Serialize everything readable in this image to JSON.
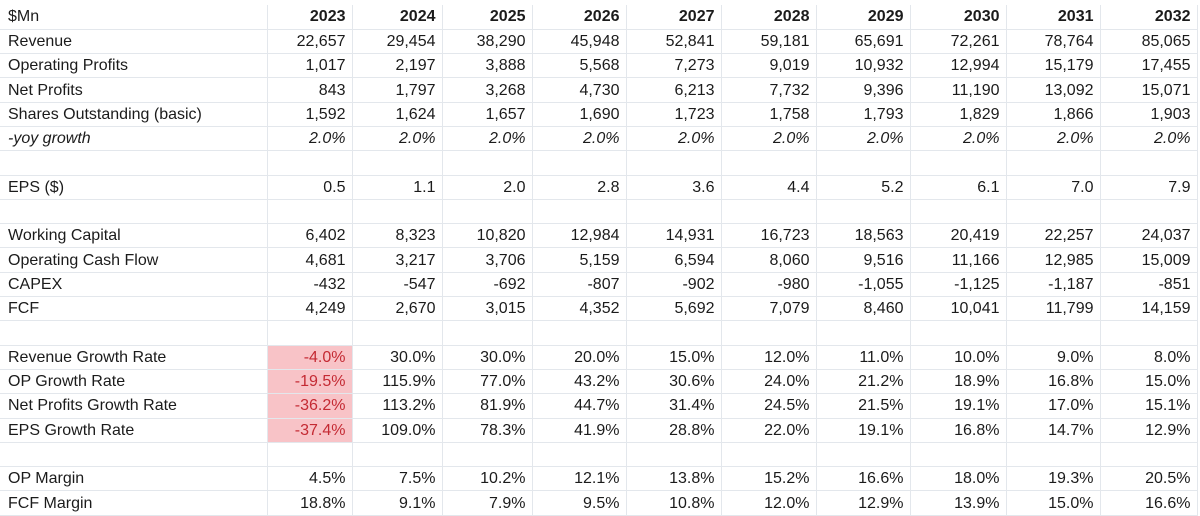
{
  "sheet": {
    "header": {
      "label": "$Mn",
      "years": [
        "2023",
        "2024",
        "2025",
        "2026",
        "2027",
        "2028",
        "2029",
        "2030",
        "2031",
        "2032"
      ]
    },
    "rows": [
      {
        "label": "Revenue",
        "values": [
          "22,657",
          "29,454",
          "38,290",
          "45,948",
          "52,841",
          "59,181",
          "65,691",
          "72,261",
          "78,764",
          "85,065"
        ]
      },
      {
        "label": "Operating Profits",
        "values": [
          "1,017",
          "2,197",
          "3,888",
          "5,568",
          "7,273",
          "9,019",
          "10,932",
          "12,994",
          "15,179",
          "17,455"
        ]
      },
      {
        "label": "Net Profits",
        "values": [
          "843",
          "1,797",
          "3,268",
          "4,730",
          "6,213",
          "7,732",
          "9,396",
          "11,190",
          "13,092",
          "15,071"
        ]
      },
      {
        "label": "Shares Outstanding (basic)",
        "values": [
          "1,592",
          "1,624",
          "1,657",
          "1,690",
          "1,723",
          "1,758",
          "1,793",
          "1,829",
          "1,866",
          "1,903"
        ]
      },
      {
        "label": "-yoy growth",
        "italic": true,
        "values": [
          "2.0%",
          "2.0%",
          "2.0%",
          "2.0%",
          "2.0%",
          "2.0%",
          "2.0%",
          "2.0%",
          "2.0%",
          "2.0%"
        ]
      },
      {
        "blank": true
      },
      {
        "label": "EPS ($)",
        "values": [
          "0.5",
          "1.1",
          "2.0",
          "2.8",
          "3.6",
          "4.4",
          "5.2",
          "6.1",
          "7.0",
          "7.9"
        ]
      },
      {
        "blank": true
      },
      {
        "label": "Working Capital",
        "values": [
          "6,402",
          "8,323",
          "10,820",
          "12,984",
          "14,931",
          "16,723",
          "18,563",
          "20,419",
          "22,257",
          "24,037"
        ]
      },
      {
        "label": "Operating Cash Flow",
        "values": [
          "4,681",
          "3,217",
          "3,706",
          "5,159",
          "6,594",
          "8,060",
          "9,516",
          "11,166",
          "12,985",
          "15,009"
        ]
      },
      {
        "label": "CAPEX",
        "values": [
          "-432",
          "-547",
          "-692",
          "-807",
          "-902",
          "-980",
          "-1,055",
          "-1,125",
          "-1,187",
          "-851"
        ]
      },
      {
        "label": "FCF",
        "values": [
          "4,249",
          "2,670",
          "3,015",
          "4,352",
          "5,692",
          "7,079",
          "8,460",
          "10,041",
          "11,799",
          "14,159"
        ]
      },
      {
        "blank": true
      },
      {
        "label": "Revenue Growth Rate",
        "highlight_first": true,
        "values": [
          "-4.0%",
          "30.0%",
          "30.0%",
          "20.0%",
          "15.0%",
          "12.0%",
          "11.0%",
          "10.0%",
          "9.0%",
          "8.0%"
        ]
      },
      {
        "label": "OP Growth Rate",
        "highlight_first": true,
        "values": [
          "-19.5%",
          "115.9%",
          "77.0%",
          "43.2%",
          "30.6%",
          "24.0%",
          "21.2%",
          "18.9%",
          "16.8%",
          "15.0%"
        ]
      },
      {
        "label": "Net Profits Growth Rate",
        "highlight_first": true,
        "values": [
          "-36.2%",
          "113.2%",
          "81.9%",
          "44.7%",
          "31.4%",
          "24.5%",
          "21.5%",
          "19.1%",
          "17.0%",
          "15.1%"
        ]
      },
      {
        "label": "EPS Growth Rate",
        "highlight_first": true,
        "values": [
          "-37.4%",
          "109.0%",
          "78.3%",
          "41.9%",
          "28.8%",
          "22.0%",
          "19.1%",
          "16.8%",
          "14.7%",
          "12.9%"
        ]
      },
      {
        "blank": true
      },
      {
        "label": "OP Margin",
        "values": [
          "4.5%",
          "7.5%",
          "10.2%",
          "12.1%",
          "13.8%",
          "15.2%",
          "16.6%",
          "18.0%",
          "19.3%",
          "20.5%"
        ]
      },
      {
        "label": "FCF Margin",
        "values": [
          "18.8%",
          "9.1%",
          "7.9%",
          "9.5%",
          "10.8%",
          "12.0%",
          "12.9%",
          "13.9%",
          "15.0%",
          "16.6%"
        ]
      }
    ],
    "colors": {
      "highlight_bg": "#f8c3c7",
      "highlight_text": "#c42a33",
      "grid": "#e3e7ec"
    }
  }
}
